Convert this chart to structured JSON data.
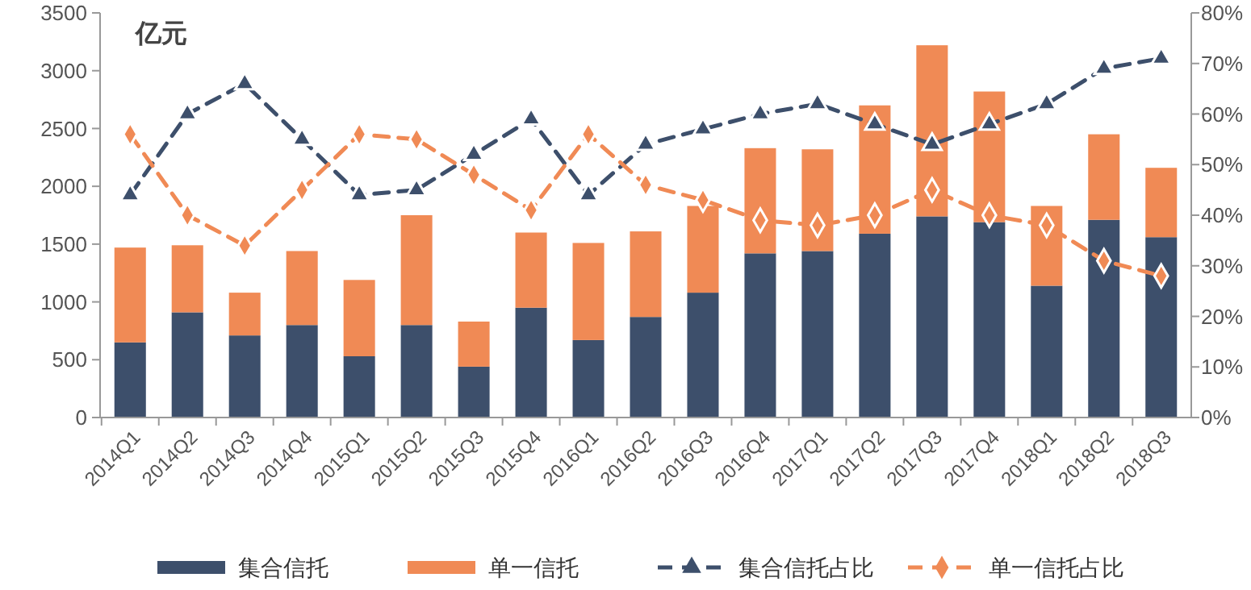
{
  "chart_data": {
    "type": "bar",
    "stacked": true,
    "ylabel": "亿元",
    "categories": [
      "2014Q1",
      "2014Q2",
      "2014Q3",
      "2014Q4",
      "2015Q1",
      "2015Q2",
      "2015Q3",
      "2015Q4",
      "2016Q1",
      "2016Q2",
      "2016Q3",
      "2016Q4",
      "2017Q1",
      "2017Q2",
      "2017Q3",
      "2017Q4",
      "2018Q1",
      "2018Q2",
      "2018Q3"
    ],
    "series": [
      {
        "name": "集合信托",
        "color": "#3d4f6b",
        "values": [
          650,
          910,
          710,
          800,
          530,
          800,
          440,
          950,
          670,
          870,
          1080,
          1420,
          1440,
          1590,
          1740,
          1690,
          1140,
          1710,
          1560
        ]
      },
      {
        "name": "单一信托",
        "color": "#f08a55",
        "values": [
          820,
          580,
          370,
          640,
          660,
          950,
          390,
          650,
          840,
          740,
          750,
          910,
          880,
          1110,
          1480,
          1130,
          690,
          740,
          600
        ]
      },
      {
        "name": "集合信托占比",
        "type": "line",
        "axis": "y2",
        "color": "#3d4f6b",
        "marker": "triangle",
        "line_style": "dashed",
        "values": [
          44,
          60,
          66,
          55,
          44,
          45,
          52,
          59,
          44,
          54,
          57,
          60,
          62,
          58,
          54,
          58,
          62,
          69,
          71
        ]
      },
      {
        "name": "单一信托占比",
        "type": "line",
        "axis": "y2",
        "color": "#f08a55",
        "marker": "diamond",
        "line_style": "dashed",
        "values": [
          56,
          40,
          34,
          45,
          56,
          55,
          48,
          41,
          56,
          46,
          43,
          39,
          38,
          40,
          45,
          40,
          38,
          31,
          28
        ]
      }
    ],
    "ylim": [
      0,
      3500
    ],
    "yticks": [
      0,
      500,
      1000,
      1500,
      2000,
      2500,
      3000,
      3500
    ],
    "y2lim": [
      0,
      80
    ],
    "y2ticks": [
      {
        "value": 0,
        "label": "0%"
      },
      {
        "value": 10,
        "label": "10%"
      },
      {
        "value": 20,
        "label": "20%"
      },
      {
        "value": 30,
        "label": "30%"
      },
      {
        "value": 40,
        "label": "40%"
      },
      {
        "value": 50,
        "label": "50%"
      },
      {
        "value": 60,
        "label": "60%"
      },
      {
        "value": 70,
        "label": "70%"
      },
      {
        "value": 80,
        "label": "80%"
      }
    ],
    "grid": false,
    "legend": "bottom"
  }
}
